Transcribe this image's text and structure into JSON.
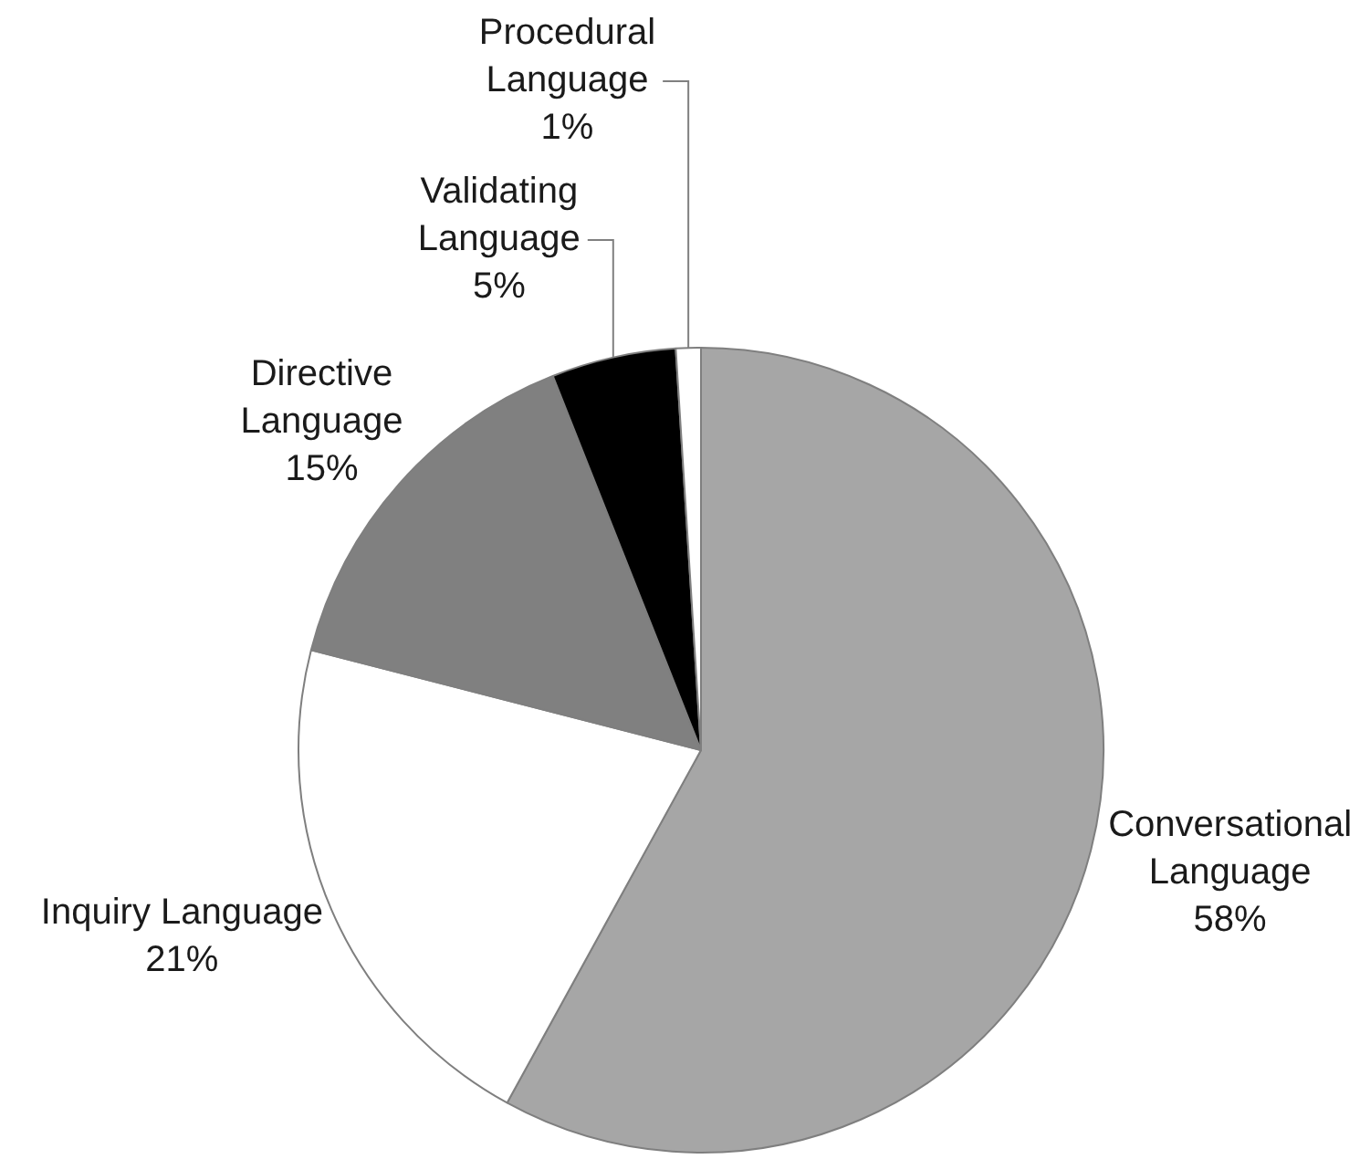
{
  "chart_data": {
    "type": "pie",
    "categories": [
      "Conversational Language",
      "Inquiry Language",
      "Directive Language",
      "Validating Language",
      "Procedural Language"
    ],
    "values": [
      58,
      21,
      15,
      5,
      1
    ],
    "colors": [
      "#a6a6a6",
      "#ffffff",
      "#808080",
      "#000000",
      "#ffffff"
    ],
    "value_labels": [
      "58%",
      "21%",
      "15%",
      "5%",
      "1%"
    ],
    "legend": false
  }
}
